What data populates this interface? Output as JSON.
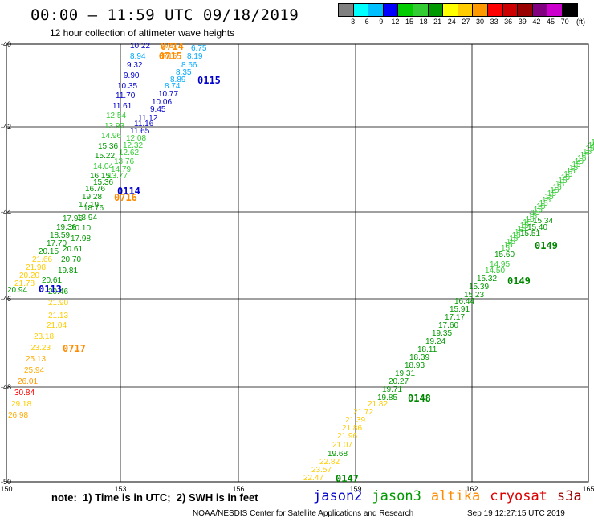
{
  "header": {
    "title": "00:00 – 11:59 UTC 09/18/2019",
    "subtitle": "12 hour collection of altimeter wave heights"
  },
  "color_scale": {
    "unit": "(ft)",
    "colors": [
      "#808080",
      "#00ffff",
      "#00bfff",
      "#0000ff",
      "#00cc00",
      "#33cc33",
      "#009900",
      "#ffff00",
      "#ffcc00",
      "#ff9900",
      "#ff0000",
      "#cc0000",
      "#990000",
      "#800080",
      "#cc00cc",
      "#000000"
    ],
    "labels": [
      "3",
      "6",
      "9",
      "12",
      "15",
      "18",
      "21",
      "24",
      "27",
      "30",
      "33",
      "36",
      "39",
      "42",
      "45",
      "70"
    ]
  },
  "map": {
    "lon_ticks": [
      "150",
      "153",
      "156",
      "159",
      "162",
      "165"
    ],
    "lat_ticks": [
      "-40",
      "-42",
      "-44",
      "-46",
      "-48",
      "-50"
    ]
  },
  "tracks": [
    {
      "satellite": "jason2",
      "color": "#0000cc",
      "labels": [
        "0113",
        "0114",
        "0115"
      ]
    },
    {
      "satellite": "jason3",
      "color": "#008800",
      "labels": [
        "0147",
        "0148",
        "0149",
        "0149"
      ]
    },
    {
      "satellite": "altika",
      "color": "#ff8c00",
      "labels": [
        "0714",
        "0715",
        "0716",
        "0717"
      ]
    }
  ],
  "points_left": [
    [
      "10.22",
      "#0000cc"
    ],
    [
      "0714",
      "#ff8c00"
    ],
    [
      "6.75",
      "#00aaff"
    ],
    [
      "8.94",
      "#00aaff"
    ],
    [
      "0715",
      "#ff8c00"
    ],
    [
      "8.19",
      "#00aaff"
    ],
    [
      "9.32",
      "#0000cc"
    ],
    [
      "8.66",
      "#00aaff"
    ],
    [
      "9.90",
      "#0000cc"
    ],
    [
      "8.35",
      "#00aaff"
    ],
    [
      "10.35",
      "#0000cc"
    ],
    [
      "8.89",
      "#00aaff"
    ],
    [
      "8.74",
      "#00aaff"
    ],
    [
      "11.70",
      "#0000cc"
    ],
    [
      "10.77",
      "#0000cc"
    ],
    [
      "10.06",
      "#0000cc"
    ],
    [
      "11.61",
      "#0000cc"
    ],
    [
      "9.45",
      "#0000cc"
    ],
    [
      "11.12",
      "#0000cc"
    ],
    [
      "12.54",
      "#33cc33"
    ],
    [
      "11.16",
      "#0000cc"
    ],
    [
      "13.93",
      "#33cc33"
    ],
    [
      "11.65",
      "#0000cc"
    ],
    [
      "14.96",
      "#33cc33"
    ],
    [
      "12.08",
      "#33cc33"
    ],
    [
      "15.36",
      "#009900"
    ],
    [
      "12.32",
      "#33cc33"
    ],
    [
      "15.22",
      "#009900"
    ],
    [
      "12.62",
      "#33cc33"
    ],
    [
      "14.04",
      "#33cc33"
    ],
    [
      "13.76",
      "#33cc33"
    ],
    [
      "14.79",
      "#33cc33"
    ],
    [
      "13.77",
      "#33cc33"
    ],
    [
      "16.15",
      "#009900"
    ],
    [
      "15.36",
      "#009900"
    ],
    [
      "16.76",
      "#009900"
    ],
    [
      "19.28",
      "#009900"
    ],
    [
      "17.19",
      "#009900"
    ],
    [
      "18.76",
      "#009900"
    ],
    [
      "17.96",
      "#009900"
    ],
    [
      "18.94",
      "#009900"
    ],
    [
      "19.36",
      "#009900"
    ],
    [
      "18.59",
      "#009900"
    ],
    [
      "20.10",
      "#009900"
    ],
    [
      "17.70",
      "#009900"
    ],
    [
      "17.98",
      "#009900"
    ],
    [
      "20.15",
      "#009900"
    ],
    [
      "20.61",
      "#009900"
    ],
    [
      "21.66",
      "#ffcc00"
    ],
    [
      "20.70",
      "#009900"
    ],
    [
      "21.98",
      "#ffcc00"
    ],
    [
      "20.20",
      "#ffcc00"
    ],
    [
      "19.81",
      "#009900"
    ],
    [
      "21.78",
      "#ffcc00"
    ],
    [
      "20.61",
      "#009900"
    ],
    [
      "20.94",
      "#009900"
    ],
    [
      "20.46",
      "#009900"
    ],
    [
      "21.90",
      "#ffcc00"
    ],
    [
      "21.13",
      "#ffcc00"
    ],
    [
      "21.04",
      "#ffcc00"
    ],
    [
      "23.18",
      "#ffcc00"
    ],
    [
      "23.23",
      "#ffcc00"
    ],
    [
      "25.13",
      "#ffaa00"
    ],
    [
      "25.94",
      "#ffaa00"
    ],
    [
      "26.01",
      "#ff9900"
    ],
    [
      "30.84",
      "#ff0000"
    ],
    [
      "29.18",
      "#ffcc00"
    ],
    [
      "26.98",
      "#ffaa00"
    ]
  ],
  "points_right": [
    [
      "22.47",
      "#ffcc00"
    ],
    [
      "23.57",
      "#ffcc00"
    ],
    [
      "22.82",
      "#ffcc00"
    ],
    [
      "19.68",
      "#009900"
    ],
    [
      "21.07",
      "#ffcc00"
    ],
    [
      "21.96",
      "#ffcc00"
    ],
    [
      "21.86",
      "#ffcc00"
    ],
    [
      "21.39",
      "#ffcc00"
    ],
    [
      "21.72",
      "#ffcc00"
    ],
    [
      "21.82",
      "#ffcc00"
    ],
    [
      "19.85",
      "#009900"
    ],
    [
      "19.71",
      "#009900"
    ],
    [
      "20.27",
      "#009900"
    ],
    [
      "19.31",
      "#009900"
    ],
    [
      "18.93",
      "#009900"
    ],
    [
      "18.39",
      "#009900"
    ],
    [
      "18.11",
      "#009900"
    ],
    [
      "19.24",
      "#009900"
    ],
    [
      "19.35",
      "#009900"
    ],
    [
      "17.60",
      "#009900"
    ],
    [
      "17.17",
      "#009900"
    ],
    [
      "15.91",
      "#009900"
    ],
    [
      "16.44",
      "#009900"
    ],
    [
      "15.23",
      "#009900"
    ],
    [
      "15.39",
      "#009900"
    ],
    [
      "15.32",
      "#009900"
    ],
    [
      "14.50",
      "#33cc33"
    ],
    [
      "14.95",
      "#33cc33"
    ],
    [
      "15.60",
      "#009900"
    ]
  ],
  "footer": {
    "note": "note:  1) Time is in UTC;  2) SWH is in feet",
    "legend": [
      {
        "name": "jason2",
        "color": "#0000cc"
      },
      {
        "name": "jason3",
        "color": "#009900"
      },
      {
        "name": "altika",
        "color": "#ff8c00"
      },
      {
        "name": "cryosat",
        "color": "#dd0000"
      },
      {
        "name": "s3a",
        "color": "#990000"
      }
    ],
    "credit": "NOAA/NESDIS Center for Satellite Applications and Research",
    "timestamp": "Sep 19 12:27:15 UTC 2019"
  }
}
